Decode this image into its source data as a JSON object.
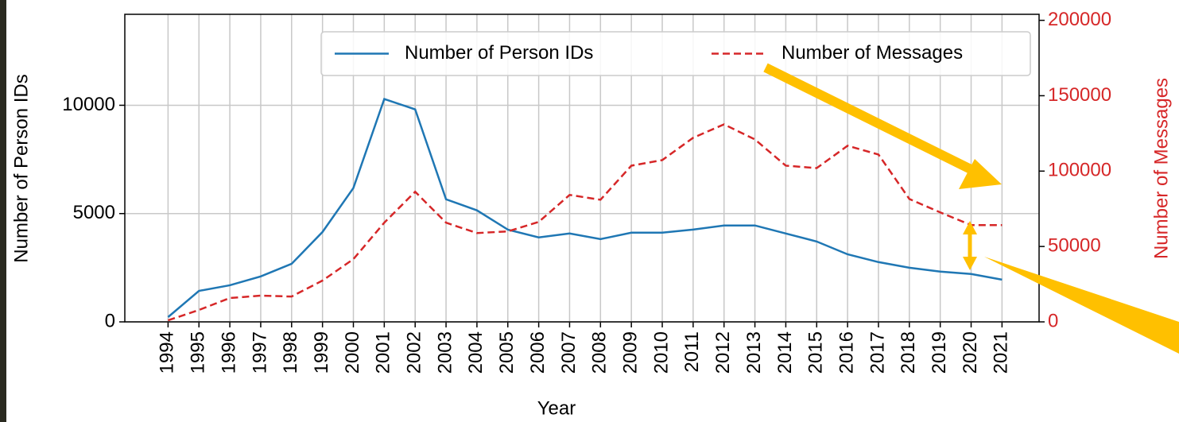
{
  "chart_data": {
    "type": "line",
    "x": [
      1994,
      1995,
      1996,
      1997,
      1998,
      1999,
      2000,
      2001,
      2002,
      2003,
      2004,
      2005,
      2006,
      2007,
      2008,
      2009,
      2010,
      2011,
      2012,
      2013,
      2014,
      2015,
      2016,
      2017,
      2018,
      2019,
      2020,
      2021
    ],
    "xlabel": "Year",
    "ylabel": "Number of Person IDs",
    "y2label": "Number of Messages",
    "xlim": [
      1992.6,
      2022.2
    ],
    "xticks": [
      1994,
      1995,
      1996,
      1997,
      1998,
      1999,
      2000,
      2001,
      2002,
      2003,
      2004,
      2005,
      2006,
      2007,
      2008,
      2009,
      2010,
      2011,
      2012,
      2013,
      2014,
      2015,
      2016,
      2017,
      2018,
      2019,
      2020,
      2021
    ],
    "ylim": [
      0,
      14200
    ],
    "yticks": [
      0,
      5000,
      10000
    ],
    "y2lim": [
      0,
      204000
    ],
    "y2ticks": [
      0,
      50000,
      100000,
      150000,
      200000
    ],
    "grid": true,
    "legend": "upper right",
    "series": [
      {
        "name": "Number of Person IDs",
        "color": "#1f77b4",
        "dash": "solid",
        "values": [
          220,
          1430,
          1690,
          2100,
          2680,
          4150,
          6180,
          10290,
          9810,
          5660,
          5150,
          4260,
          3900,
          4080,
          3820,
          4120,
          4120,
          4260,
          4450,
          4450,
          4080,
          3710,
          3120,
          2760,
          2500,
          2320,
          2210,
          1950
        ]
      },
      {
        "name": "Number of Messages",
        "color": "#d62728",
        "dash": "dashed",
        "axis": "y2",
        "values": [
          1000,
          7900,
          15800,
          17400,
          16800,
          27400,
          41600,
          65800,
          86300,
          65800,
          58900,
          60000,
          66300,
          84200,
          81000,
          103600,
          107300,
          122100,
          131000,
          121000,
          103600,
          102000,
          116800,
          111000,
          81500,
          72600,
          64200,
          64200
        ]
      }
    ]
  }
}
